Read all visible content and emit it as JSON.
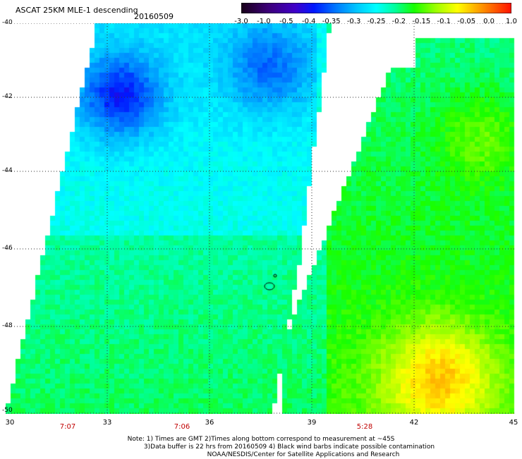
{
  "header": {
    "title": "ASCAT 25KM MLE-1 descending",
    "date": "20160509"
  },
  "colorbar": {
    "labels": [
      "-3.0",
      "-1.0",
      "-0.5",
      "-0.4",
      "-0.35",
      "-0.3",
      "-0.25",
      "-0.2",
      "-0.15",
      "-0.1",
      "-0.05",
      "0.0",
      "1.0"
    ],
    "colors": [
      "#1a001a",
      "#3a0080",
      "#4a00c0",
      "#0020ff",
      "#0070ff",
      "#00b8ff",
      "#00ffff",
      "#00ff90",
      "#20ff00",
      "#a0ff00",
      "#ffff00",
      "#ff9000",
      "#ff2000"
    ]
  },
  "axes": {
    "lat_labels": [
      "-40",
      "-42",
      "-44",
      "-46",
      "-48",
      "-50"
    ],
    "lon_labels": [
      "30",
      "33",
      "36",
      "39",
      "42",
      "45"
    ],
    "time_labels": [
      "7:07",
      "7:06",
      "5:28"
    ]
  },
  "notes": {
    "line1": "Note: 1) Times are GMT 2)Times along bottom correspond to measurement at ~45S",
    "line2": "3)Data buffer is 22 hrs from 20160509 4) Black wind barbs indicate possible contamination",
    "line3": "NOAA/NESDIS/Center for Satellite Applications and Research"
  }
}
